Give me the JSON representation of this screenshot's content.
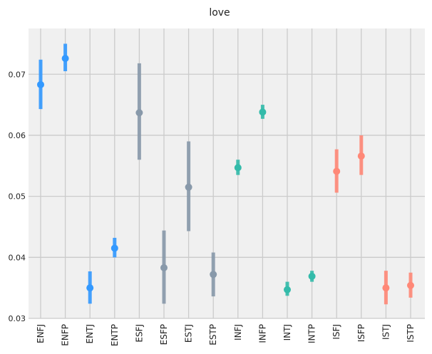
{
  "chart_data": {
    "type": "scatter",
    "title": "love",
    "xlabel": "",
    "ylabel": "",
    "ylim": [
      0.03,
      0.0775
    ],
    "yticks": [
      0.03,
      0.04,
      0.05,
      0.06,
      0.07
    ],
    "ytick_labels": [
      "0.03",
      "0.04",
      "0.05",
      "0.06",
      "0.07"
    ],
    "grid": true,
    "error_bars": true,
    "categories": [
      "ENFJ",
      "ENFP",
      "ENTJ",
      "ENTP",
      "ESFJ",
      "ESFP",
      "ESTJ",
      "ESTP",
      "INFJ",
      "INFP",
      "INTJ",
      "INTP",
      "ISFJ",
      "ISFP",
      "ISTJ",
      "ISTP"
    ],
    "values": [
      0.0683,
      0.0726,
      0.035,
      0.0415,
      0.0637,
      0.0383,
      0.0515,
      0.0372,
      0.0547,
      0.0638,
      0.0347,
      0.0369,
      0.0541,
      0.0566,
      0.035,
      0.0354
    ],
    "lower": [
      0.0643,
      0.0705,
      0.0324,
      0.04,
      0.056,
      0.0324,
      0.0443,
      0.0336,
      0.0535,
      0.0627,
      0.0337,
      0.036,
      0.0506,
      0.0535,
      0.0323,
      0.0334
    ],
    "upper": [
      0.0724,
      0.075,
      0.0377,
      0.0432,
      0.0718,
      0.0444,
      0.059,
      0.0408,
      0.056,
      0.065,
      0.036,
      0.0378,
      0.0577,
      0.06,
      0.0378,
      0.0375
    ],
    "colors": [
      "#3399ff",
      "#3399ff",
      "#3399ff",
      "#3399ff",
      "#8899aa",
      "#8899aa",
      "#8899aa",
      "#8899aa",
      "#33bbaa",
      "#33bbaa",
      "#33bbaa",
      "#33bbaa",
      "#ff8877",
      "#ff8877",
      "#ff8877",
      "#ff8877"
    ],
    "background_color": "#f0f0f0",
    "grid_color": "#cbcbcb"
  }
}
